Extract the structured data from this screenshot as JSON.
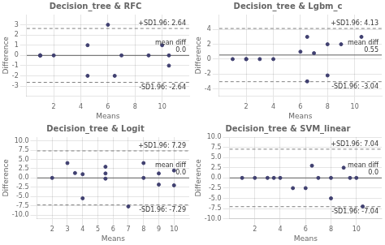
{
  "chart_data": [
    {
      "type": "scatter",
      "title": "Decision_tree & RFC",
      "xlabel": "Means",
      "ylabel": "Difference",
      "x": [
        1,
        1,
        1,
        1,
        2,
        4.5,
        4.5,
        6,
        6.5,
        7,
        9,
        10,
        10.5,
        10.5
      ],
      "values": [
        0,
        0,
        0,
        0,
        0,
        1,
        -2,
        3,
        -2,
        0,
        0,
        1,
        -1,
        0
      ],
      "color": "#404070",
      "xlim": [
        0,
        12
      ],
      "ylim": [
        -4,
        4
      ],
      "xticks": [
        2,
        4,
        6,
        8,
        10
      ],
      "yticks": [
        -3,
        -2,
        -1,
        0,
        1,
        2,
        3
      ],
      "grid": true,
      "annotations": [
        {
          "text": "+SD1.96: 2.64",
          "y": 2.64,
          "color": "#808080",
          "line_style": "dashed"
        },
        {
          "text": "mean diff\n0.0",
          "y": 0.0,
          "color": "#606060",
          "line_style": "solid"
        },
        {
          "text": "-SD1.96: -2.64",
          "y": -2.64,
          "color": "#808080",
          "line_style": "dashed"
        }
      ]
    },
    {
      "type": "scatter",
      "title": "Decision_tree & Lgbm_c",
      "xlabel": "Means",
      "ylabel": "Difference",
      "x": [
        1,
        2,
        2,
        3,
        4,
        6,
        6.5,
        6.5,
        7,
        8,
        8,
        9,
        10.5
      ],
      "values": [
        0,
        0,
        0,
        0,
        0,
        1,
        3,
        -3,
        0.8,
        2,
        -2.2,
        2,
        3
      ],
      "color": "#404070",
      "xlim": [
        0,
        12
      ],
      "ylim": [
        -5,
        6
      ],
      "xticks": [
        2,
        4,
        6,
        8,
        10
      ],
      "yticks": [
        -4,
        -2,
        0,
        2,
        4
      ],
      "grid": true,
      "annotations": [
        {
          "text": "+SD1.96: 4.13",
          "y": 4.13,
          "color": "#808080",
          "line_style": "dashed"
        },
        {
          "text": "mean diff\n0.55",
          "y": 0.55,
          "color": "#606060",
          "line_style": "solid"
        },
        {
          "text": "-SD1.96: -3.04",
          "y": -3.04,
          "color": "#808080",
          "line_style": "dashed"
        }
      ]
    },
    {
      "type": "scatter",
      "title": "Decision_tree & Logit",
      "xlabel": "Means",
      "ylabel": "Difference",
      "x": [
        2,
        3,
        3.5,
        4,
        4,
        5.5,
        5.5,
        5.5,
        7,
        8,
        8,
        9,
        9,
        10,
        10
      ],
      "values": [
        0,
        4,
        1.3,
        1,
        -5.5,
        3,
        1.2,
        -0.2,
        -7.7,
        4,
        0,
        1.2,
        -1.8,
        -2,
        2
      ],
      "color": "#404070",
      "xlim": [
        1,
        11
      ],
      "ylim": [
        -11,
        11
      ],
      "xticks": [
        2,
        3,
        4,
        5,
        6,
        7,
        8,
        9,
        10
      ],
      "yticks": [
        {
          "value": -10,
          "label": "-10.0"
        },
        -7.5,
        {
          "value": -5,
          "label": "-5.0"
        },
        -2.5,
        {
          "value": 0,
          "label": "0.0"
        },
        2.5,
        {
          "value": 5,
          "label": "5.0"
        },
        7.5,
        {
          "value": 10,
          "label": "10.0"
        }
      ],
      "grid": true,
      "annotations": [
        {
          "text": "+SD1.96: 7.29",
          "y": 7.29,
          "color": "#808080",
          "line_style": "dashed"
        },
        {
          "text": "mean diff\n0.0",
          "y": 0.0,
          "color": "#606060",
          "line_style": "solid"
        },
        {
          "text": "-SD1.96: -7.29",
          "y": -7.29,
          "color": "#808080",
          "line_style": "dashed"
        }
      ]
    },
    {
      "type": "scatter",
      "title": "Decision_tree & SVM_linear",
      "xlabel": "Means",
      "ylabel": "Difference",
      "x": [
        1,
        2,
        3,
        3.5,
        4,
        5,
        6,
        6.5,
        7,
        8,
        8,
        9,
        9.5,
        10,
        10.5
      ],
      "values": [
        0,
        0,
        0,
        0,
        0,
        -2.5,
        -2.5,
        3,
        0,
        0,
        -5,
        2.5,
        0,
        0,
        -7
      ],
      "color": "#404070",
      "xlim": [
        0,
        12
      ],
      "ylim": [
        -10,
        10
      ],
      "xticks": [
        2,
        4,
        6,
        8,
        10
      ],
      "yticks": [
        {
          "value": -10,
          "label": "-10.0"
        },
        -7.5,
        {
          "value": -5,
          "label": "-5.0"
        },
        -2.5,
        {
          "value": 0,
          "label": "0.0"
        },
        2.5,
        {
          "value": 5,
          "label": "5.0"
        },
        7.5,
        {
          "value": 10,
          "label": "10.0"
        }
      ],
      "grid": true,
      "annotations": [
        {
          "text": "+SD1.96: 7.04",
          "y": 7.04,
          "color": "#808080",
          "line_style": "dashed"
        },
        {
          "text": "mean diff\n0.0",
          "y": 0.0,
          "color": "#606060",
          "line_style": "solid"
        },
        {
          "text": "-SD1.96: -7.04",
          "y": -7.04,
          "color": "#808080",
          "line_style": "dashed"
        }
      ]
    }
  ]
}
